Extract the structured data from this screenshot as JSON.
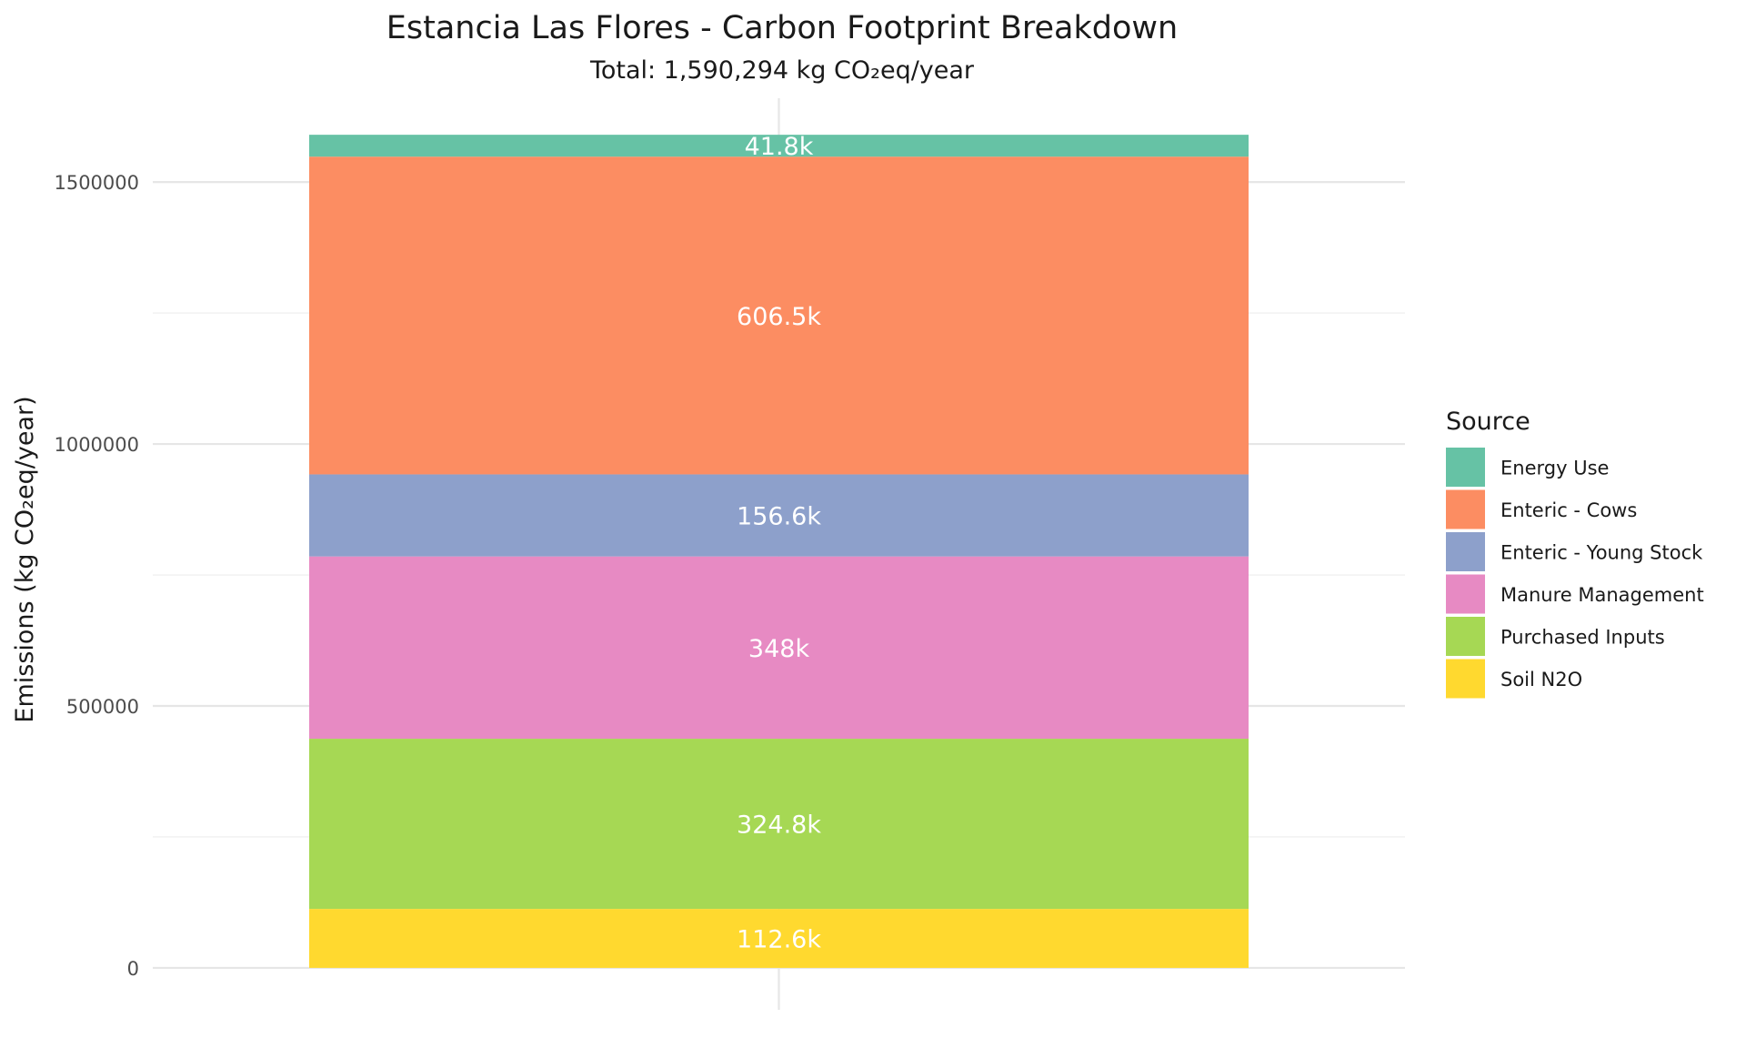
{
  "chart_data": {
    "type": "bar",
    "stacked": true,
    "title": "Estancia Las Flores - Carbon Footprint Breakdown",
    "subtitle": "Total: 1,590,294 kg CO₂eq/year",
    "xlabel": "",
    "ylabel": "Emissions (kg CO₂eq/year)",
    "categories": [
      ""
    ],
    "ylim": [
      -80000,
      1660000
    ],
    "y_ticks": [
      0,
      500000,
      1000000,
      1500000
    ],
    "y_tick_labels": [
      "0",
      "500000",
      "1000000",
      "1500000"
    ],
    "grid": true,
    "legend": {
      "title": "Source",
      "position": "right"
    },
    "series": [
      {
        "name": "Soil N2O",
        "values": [
          112600
        ],
        "label": "112.6k",
        "color": "#FFD92F"
      },
      {
        "name": "Purchased Inputs",
        "values": [
          324800
        ],
        "label": "324.8k",
        "color": "#A6D854"
      },
      {
        "name": "Manure Management",
        "values": [
          348000
        ],
        "label": "348k",
        "color": "#E78AC3"
      },
      {
        "name": "Enteric - Young Stock",
        "values": [
          156600
        ],
        "label": "156.6k",
        "color": "#8DA0CB"
      },
      {
        "name": "Enteric - Cows",
        "values": [
          606500
        ],
        "label": "606.5k",
        "color": "#FC8D62"
      },
      {
        "name": "Energy Use",
        "values": [
          41800
        ],
        "label": "41.8k",
        "color": "#66C2A5"
      }
    ],
    "legend_order": [
      "Energy Use",
      "Enteric - Cows",
      "Enteric - Young Stock",
      "Manure Management",
      "Purchased Inputs",
      "Soil N2O"
    ]
  }
}
